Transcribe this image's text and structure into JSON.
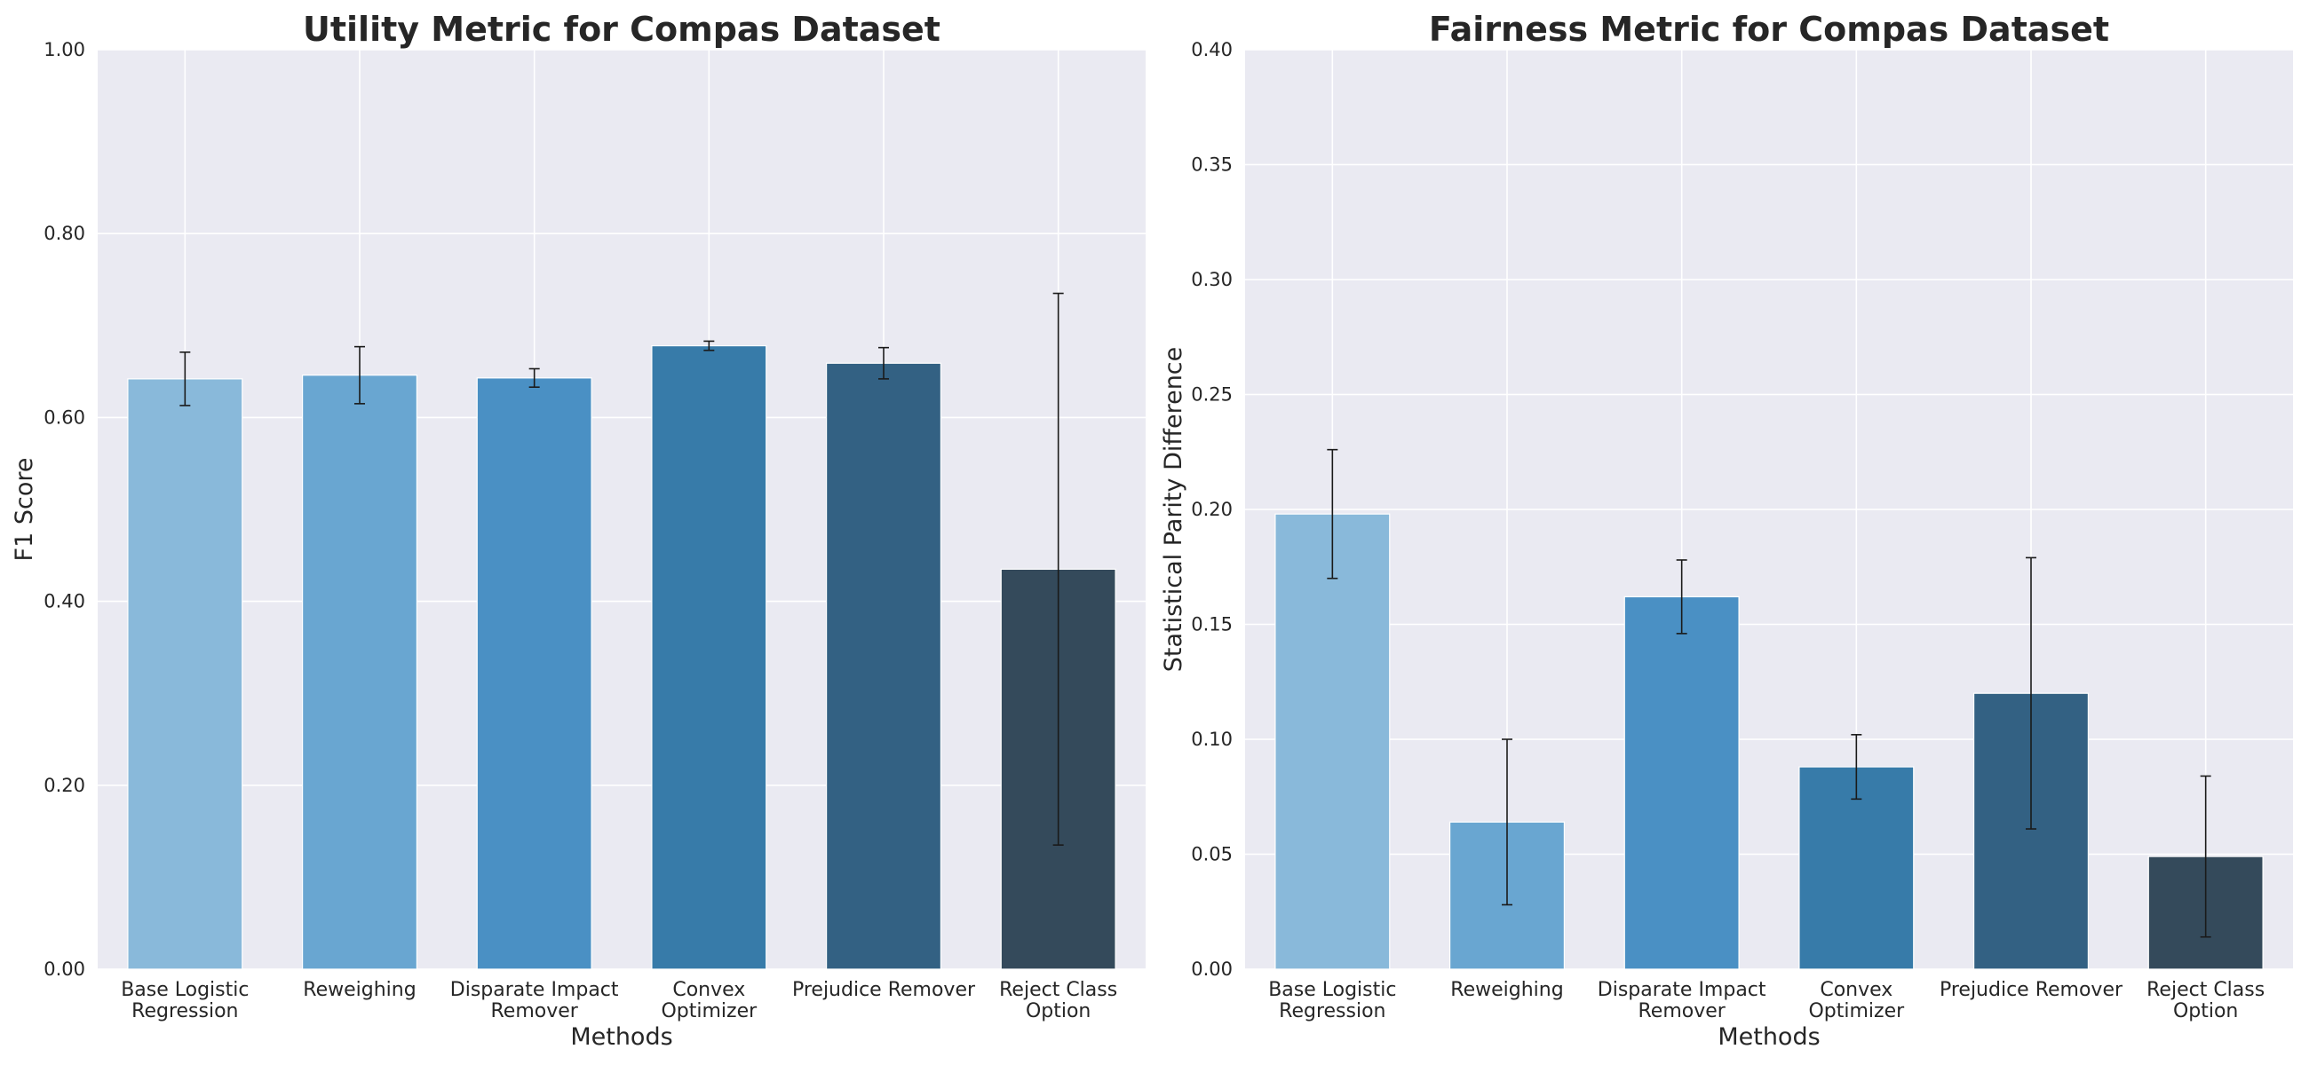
{
  "chart_data": [
    {
      "type": "bar",
      "title": "Utility Metric for Compas Dataset",
      "xlabel": "Methods",
      "ylabel": "F1 Score",
      "ylim": [
        0,
        1.0
      ],
      "yticks": [
        "0.00",
        "0.20",
        "0.40",
        "0.60",
        "0.80",
        "1.00"
      ],
      "ytick_values": [
        0,
        0.2,
        0.4,
        0.6,
        0.8,
        1.0
      ],
      "grid": true,
      "categories": [
        [
          "Base Logistic",
          "Regression"
        ],
        [
          "Reweighing"
        ],
        [
          "Disparate Impact",
          "Remover"
        ],
        [
          "Convex",
          "Optimizer"
        ],
        [
          "Prejudice Remover"
        ],
        [
          "Reject Class",
          "Option"
        ]
      ],
      "values": [
        0.642,
        0.646,
        0.643,
        0.678,
        0.659,
        0.435
      ],
      "errors": [
        0.029,
        0.031,
        0.01,
        0.005,
        0.017,
        0.3
      ],
      "colors": [
        "#89b9da",
        "#69a6d1",
        "#4a90c4",
        "#377ba9",
        "#336183",
        "#344a5b"
      ]
    },
    {
      "type": "bar",
      "title": "Fairness Metric for Compas Dataset",
      "xlabel": "Methods",
      "ylabel": "Statistical Parity Difference",
      "ylim": [
        0,
        0.4
      ],
      "yticks": [
        "0.00",
        "0.05",
        "0.10",
        "0.15",
        "0.20",
        "0.25",
        "0.30",
        "0.35",
        "0.40"
      ],
      "ytick_values": [
        0,
        0.05,
        0.1,
        0.15,
        0.2,
        0.25,
        0.3,
        0.35,
        0.4
      ],
      "grid": true,
      "categories": [
        [
          "Base Logistic",
          "Regression"
        ],
        [
          "Reweighing"
        ],
        [
          "Disparate Impact",
          "Remover"
        ],
        [
          "Convex",
          "Optimizer"
        ],
        [
          "Prejudice Remover"
        ],
        [
          "Reject Class",
          "Option"
        ]
      ],
      "values": [
        0.198,
        0.064,
        0.162,
        0.088,
        0.12,
        0.049
      ],
      "errors": [
        0.028,
        0.036,
        0.016,
        0.014,
        0.059,
        0.035
      ],
      "colors": [
        "#89b9da",
        "#69a6d1",
        "#4a90c4",
        "#377ba9",
        "#336183",
        "#344a5b"
      ]
    }
  ]
}
